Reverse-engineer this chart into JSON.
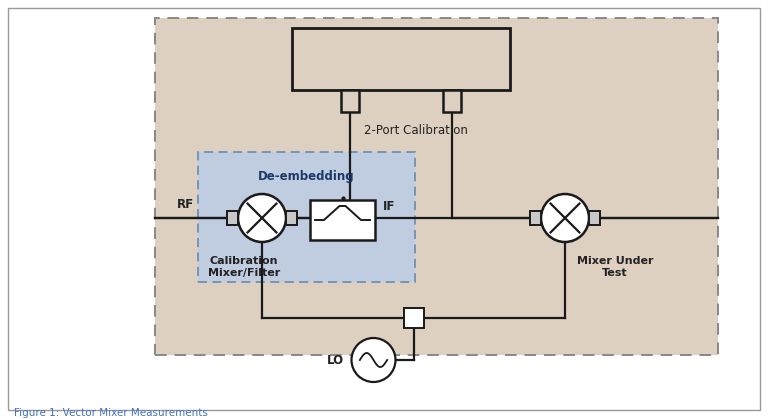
{
  "fig_width": 7.68,
  "fig_height": 4.19,
  "dpi": 100,
  "bg_color": "#ffffff",
  "outer_box_color": "#ddd0c0",
  "inner_box_color": "#c0cce0",
  "caption": "Figure 1: Vector Mixer Measurements",
  "label_2port": "2-Port Calibration",
  "label_deembed": "De-embedding",
  "label_rf": "RF",
  "label_if": "IF",
  "label_lo": "LO",
  "label_cal_mixer": "Calibration\nMixer/Filter",
  "label_mut": "Mixer Under\nTest",
  "line_color": "#1a1a1a",
  "text_color": "#222222",
  "caption_color": "#4472c4",
  "border_color": "#999999",
  "outer_dashed_color": "#888888",
  "inner_dashed_color": "#7090b0"
}
